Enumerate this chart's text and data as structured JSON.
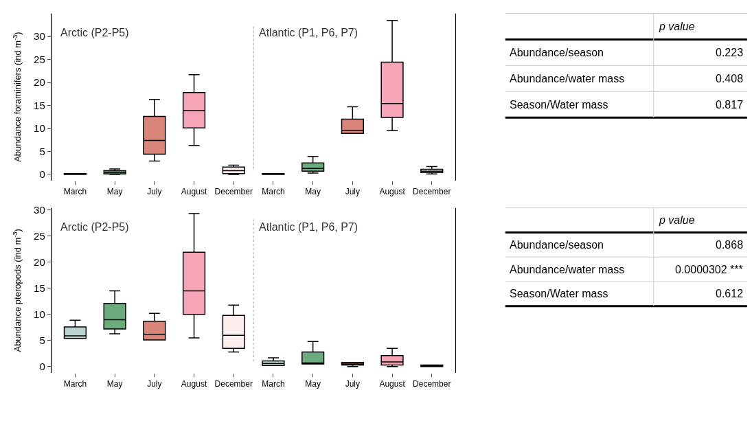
{
  "chart_data": [
    {
      "type": "box",
      "ylabel": "Abundance foraminifers (ind m$^{-3}$)",
      "categories": [
        "March",
        "May",
        "July",
        "August",
        "December",
        "March",
        "May",
        "July",
        "August",
        "December"
      ],
      "colors": [
        "#b9d4d2",
        "#6aaa7c",
        "#d9857a",
        "#f6a5b9",
        "#fdeeee",
        "#b9d4d2",
        "#6aaa7c",
        "#d9857a",
        "#f6a5b9",
        "#fdeeee"
      ],
      "boxes": [
        {
          "low": 0,
          "q1": 0,
          "median": 0,
          "q3": 0.2,
          "high": 0.2
        },
        {
          "low": 0,
          "q1": 0.1,
          "median": 0.4,
          "q3": 0.8,
          "high": 1.2
        },
        {
          "low": 2.9,
          "q1": 4.4,
          "median": 7.4,
          "q3": 12.6,
          "high": 16.3
        },
        {
          "low": 6.3,
          "q1": 10.1,
          "median": 13.9,
          "q3": 17.8,
          "high": 21.7
        },
        {
          "low": 0,
          "q1": 0.2,
          "median": 0.8,
          "q3": 1.6,
          "high": 2.0
        },
        {
          "low": 0,
          "q1": 0,
          "median": 0,
          "q3": 0.2,
          "high": 0.2
        },
        {
          "low": 0.3,
          "q1": 0.7,
          "median": 1.3,
          "q3": 2.5,
          "high": 3.9
        },
        {
          "low": 8.9,
          "q1": 8.9,
          "median": 9.6,
          "q3": 12.0,
          "high": 14.7
        },
        {
          "low": 9.5,
          "q1": 12.4,
          "median": 15.4,
          "q3": 24.4,
          "high": 33.5
        },
        {
          "low": 0.1,
          "q1": 0.4,
          "median": 0.7,
          "q3": 1.1,
          "high": 1.7
        }
      ],
      "ylim": [
        -1.3,
        35
      ],
      "yticks": [
        0,
        5,
        10,
        15,
        20,
        25,
        30
      ],
      "annotations": [
        "Arctic (P2-P5)",
        "Atlantic (P1, P6, P7)"
      ]
    },
    {
      "type": "other",
      "annotations": [
        "p value",
        "Abundance/season",
        "0.223",
        "Abundance/water mass",
        "0.408",
        "Season/Water mass",
        "0.817"
      ]
    },
    {
      "type": "box",
      "ylabel": "Abundance pteropods (ind m$^{-3}$)",
      "categories": [
        "March",
        "May",
        "July",
        "August",
        "December",
        "March",
        "May",
        "July",
        "August",
        "December"
      ],
      "colors": [
        "#b9d4d2",
        "#6aaa7c",
        "#d9857a",
        "#f6a5b9",
        "#fdeeee",
        "#b9d4d2",
        "#6aaa7c",
        "#d9857a",
        "#f6a5b9",
        "#fdeeee"
      ],
      "boxes": [
        {
          "low": 5.4,
          "q1": 5.4,
          "median": 5.9,
          "q3": 7.6,
          "high": 8.9
        },
        {
          "low": 6.3,
          "q1": 7.2,
          "median": 9.0,
          "q3": 12.1,
          "high": 14.5
        },
        {
          "low": 5.1,
          "q1": 5.1,
          "median": 6.2,
          "q3": 8.7,
          "high": 10.2
        },
        {
          "low": 5.5,
          "q1": 10.0,
          "median": 14.5,
          "q3": 21.9,
          "high": 29.3
        },
        {
          "low": 2.8,
          "q1": 3.5,
          "median": 6.0,
          "q3": 9.8,
          "high": 11.8
        },
        {
          "low": 0.2,
          "q1": 0.2,
          "median": 0.6,
          "q3": 1.1,
          "high": 1.7
        },
        {
          "low": 0.5,
          "q1": 0.5,
          "median": 0.7,
          "q3": 2.8,
          "high": 4.8
        },
        {
          "low": 0,
          "q1": 0.3,
          "median": 0.5,
          "q3": 0.8,
          "high": 0.8
        },
        {
          "low": 0,
          "q1": 0.3,
          "median": 0.9,
          "q3": 2.1,
          "high": 3.5
        },
        {
          "low": 0,
          "q1": 0,
          "median": 0.1,
          "q3": 0.3,
          "high": 0.3
        }
      ],
      "ylim": [
        -1.2,
        30.4
      ],
      "yticks": [
        0,
        5,
        10,
        15,
        20,
        25,
        30
      ],
      "annotations": [
        "Arctic (P2-P5)",
        "Atlantic (P1, P6, P7)"
      ]
    },
    {
      "type": "other",
      "annotations": [
        "p value",
        "Abundance/season",
        "0.868",
        "Abundance/water mass",
        "0.0000302 ***",
        "Season/Water mass",
        "0.612"
      ]
    }
  ]
}
